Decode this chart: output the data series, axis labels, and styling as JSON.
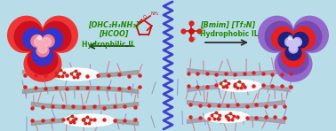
{
  "bg_color": "#b8dde8",
  "left_label1": "[OHC₂H₄NH₃]",
  "left_label2": "[HCOO]",
  "left_label3": "Hydrophilic IL",
  "right_label1": "[Bmim] [Tf₂N]",
  "right_label2": "Hydrophobic IL",
  "label_color": "#228800",
  "vesicle_left_outer": "#f03535",
  "vesicle_left_mid": "#cc1020",
  "vesicle_left_blue_ring": "#3535cc",
  "vesicle_left_core": "#f08090",
  "vesicle_right_outer": "#9568cc",
  "vesicle_right_mid": "#7848b0",
  "vesicle_right_blue_ring": "#202080",
  "vesicle_right_red_ring": "#e82020",
  "vesicle_right_core": "#b0a8e8",
  "zigzag_color": "#4040cc",
  "arrow_color": "#303030",
  "mol_color": "#cc1010",
  "green_mol": "#208020",
  "red_dot": "#dd2020",
  "pink_tail": "#d08090",
  "blue_tail": "#9090cc",
  "membrane_gray": "#a09898"
}
